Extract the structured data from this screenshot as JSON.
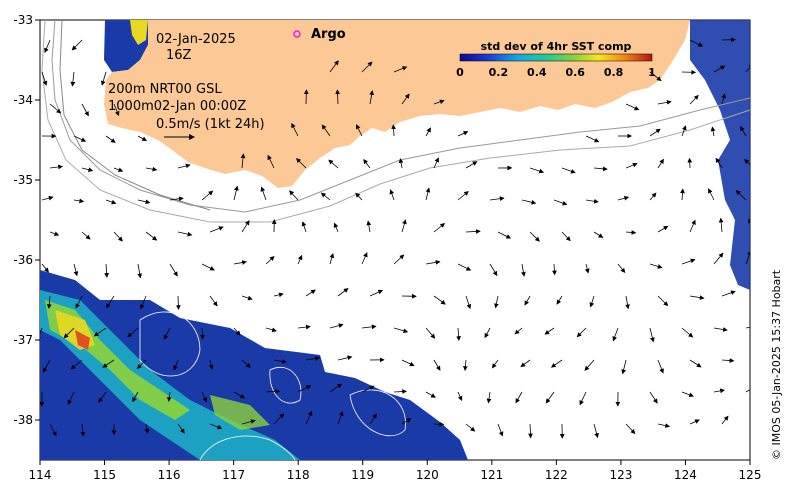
{
  "map": {
    "x_ticks": [
      "114",
      "115",
      "116",
      "117",
      "118",
      "119",
      "120",
      "121",
      "122",
      "123",
      "124",
      "125"
    ],
    "y_ticks": [
      "-33",
      "-34",
      "-35",
      "-36",
      "-37",
      "-38"
    ],
    "x_range": [
      114,
      125
    ],
    "y_range": [
      -38.5,
      -33
    ]
  },
  "annotations": {
    "date": "02-Jan-2025",
    "hour": "16Z",
    "line1": "200m  NRT00 GSL",
    "line2": "1000m02-Jan 00:00Z",
    "scale": "0.5m/s (1kt 24h)"
  },
  "legend": {
    "argo_label": "Argo",
    "argo_color": "#e020e0",
    "colorbar_title": "std dev of 4hr SST comp",
    "colorbar_ticks": [
      "0",
      "0.2",
      "0.4",
      "0.6",
      "0.8",
      "1"
    ]
  },
  "credit": "© IMOS 05-Jan-2025 15:37 Hobart",
  "colors": {
    "land": "#fcc896",
    "sst_low": "#1a2fa0",
    "sst_mid": "#1fb4c8",
    "sst_high": "#e8e020"
  }
}
